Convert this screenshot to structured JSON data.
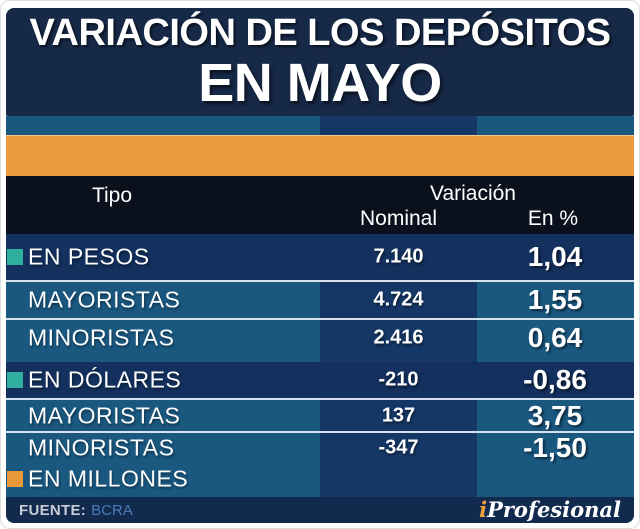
{
  "title": {
    "line1": "VARIACIÓN DE LOS DEPÓSITOS",
    "line2": "EN MAYO"
  },
  "header": {
    "tipo": "Tipo",
    "variacion": "Variación",
    "nominal": "Nominal",
    "en_pct": "En %"
  },
  "rows": [
    {
      "label": "EN PESOS",
      "nominal": "7.140",
      "pct": "1,04"
    },
    {
      "label": "MAYORISTAS",
      "nominal": "4.724",
      "pct": "1,55"
    },
    {
      "label": "MINORISTAS",
      "nominal": "2.416",
      "pct": "0,64"
    },
    {
      "label": "EN DÓLARES",
      "nominal": "-210",
      "pct": "-0,86"
    },
    {
      "label": "MAYORISTAS",
      "nominal": "137",
      "pct": "3,75"
    },
    {
      "label": "MINORISTAS",
      "nominal": "-347",
      "pct": "-1,50"
    }
  ],
  "footnote": {
    "label": "EN MILLONES"
  },
  "footer": {
    "source_label": "FUENTE:",
    "source_value": "BCRA",
    "brand_i": "i",
    "brand_rest": "Profesional"
  },
  "colors": {
    "title_navy": "#162947",
    "row_blue": "#1a5880",
    "row_dark": "#13305e",
    "column_stripe": "#153766",
    "orange_band": "#ec9c3e",
    "header_black": "#0b101d",
    "teal_bullet": "#2fb09f",
    "orange_bullet": "#e9973b",
    "footer_navy": "#122a4e",
    "source_value_blue": "#4a7cba",
    "brand_i_orange": "#f0a13a"
  },
  "chart_data": {
    "type": "table",
    "title": "VARIACIÓN DE LOS DEPÓSITOS EN MAYO",
    "columns": [
      "Tipo",
      "Variación Nominal",
      "Variación En %"
    ],
    "rows": [
      [
        "EN PESOS",
        7140,
        1.04
      ],
      [
        "MAYORISTAS",
        4724,
        1.55
      ],
      [
        "MINORISTAS",
        2416,
        0.64
      ],
      [
        "EN DÓLARES",
        -210,
        -0.86
      ],
      [
        "MAYORISTAS",
        137,
        3.75
      ],
      [
        "MINORISTAS",
        -347,
        -1.5
      ]
    ],
    "units": "EN MILLONES",
    "source": "BCRA",
    "legend_position": "none",
    "grid": false
  }
}
